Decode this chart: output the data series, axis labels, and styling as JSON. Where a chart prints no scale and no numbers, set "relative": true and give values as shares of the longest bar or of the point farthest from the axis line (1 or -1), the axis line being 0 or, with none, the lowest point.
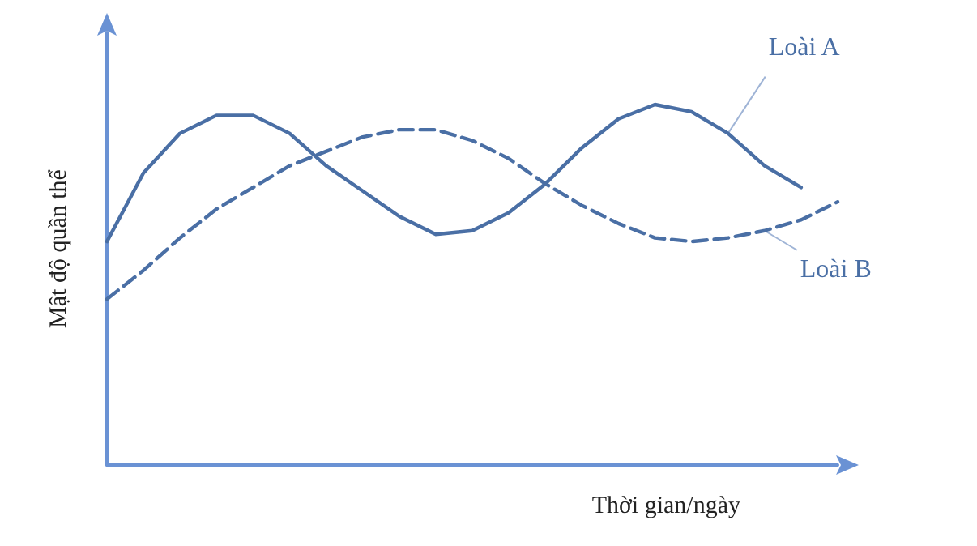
{
  "chart_data": {
    "type": "line",
    "relative": true,
    "xlabel": "Thời gian/ngày",
    "ylabel": "Mật độ quần thể",
    "categories": [
      null,
      null,
      null,
      null,
      null,
      null,
      null,
      null,
      null,
      null,
      null,
      null,
      null,
      null,
      null,
      null,
      null,
      null,
      null,
      null,
      null
    ],
    "series": [
      {
        "name": "Loài A",
        "color": "#4a6fa5",
        "line_style": "solid",
        "values": [
          0.62,
          0.81,
          0.92,
          0.97,
          0.97,
          0.92,
          0.83,
          0.76,
          0.69,
          0.64,
          0.65,
          0.7,
          0.78,
          0.88,
          0.96,
          1.0,
          0.98,
          0.92,
          0.83,
          0.77,
          null
        ]
      },
      {
        "name": "Loài B",
        "color": "#4a6fa5",
        "line_style": "dashed",
        "values": [
          0.46,
          0.54,
          0.63,
          0.71,
          0.77,
          0.83,
          0.87,
          0.91,
          0.93,
          0.93,
          0.9,
          0.85,
          0.78,
          0.72,
          0.67,
          0.63,
          0.62,
          0.63,
          0.65,
          0.68,
          0.73
        ]
      }
    ],
    "grid": false,
    "legend": false,
    "marker": "none"
  }
}
